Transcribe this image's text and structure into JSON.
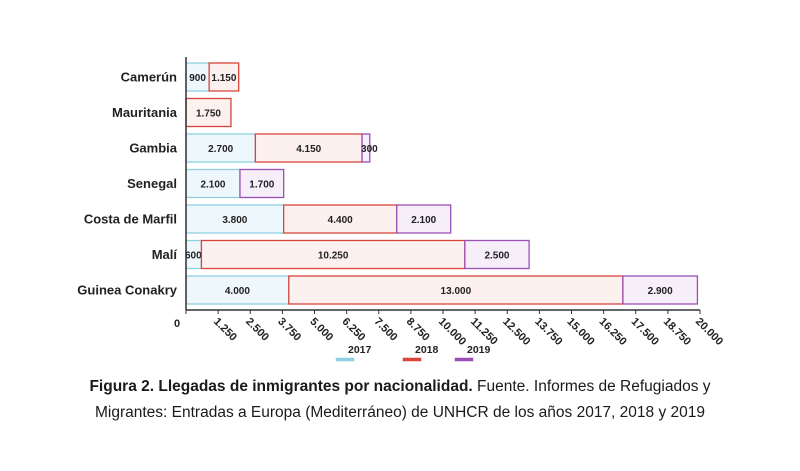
{
  "chart_data": {
    "type": "bar",
    "orientation": "horizontal",
    "stacked": true,
    "title": "",
    "xlabel": "",
    "ylabel": "",
    "categories": [
      "Camerún",
      "Mauritania",
      "Gambia",
      "Senegal",
      "Costa de Marfil",
      "Malí",
      "Guinea Conakry"
    ],
    "series": [
      {
        "name": "2017",
        "values": [
          900,
          null,
          2700,
          2100,
          3800,
          600,
          4000
        ],
        "labels": [
          "900",
          "",
          "2.700",
          "2.100",
          "3.800",
          "600",
          "4.000"
        ],
        "fill": "#eef7fb",
        "stroke": "#8ecfe4"
      },
      {
        "name": "2018",
        "values": [
          1150,
          1750,
          4150,
          null,
          4400,
          10250,
          13000
        ],
        "labels": [
          "1.150",
          "1.750",
          "4.150",
          "",
          "4.400",
          "10.250",
          "13.000"
        ],
        "fill": "#fdf1f0",
        "stroke": "#d9443a"
      },
      {
        "name": "2019",
        "values": [
          null,
          null,
          300,
          1700,
          2100,
          2500,
          2900
        ],
        "labels": [
          "",
          "",
          "300",
          "1.700",
          "2.100",
          "2.500",
          "2.900"
        ],
        "fill": "#f6effa",
        "stroke": "#9a4fb5"
      }
    ],
    "xlim": [
      0,
      20000
    ],
    "xticks": [
      0,
      1250,
      2500,
      3750,
      5000,
      6250,
      7500,
      8750,
      10000,
      11250,
      12500,
      13750,
      15000,
      16250,
      17500,
      18750,
      20000
    ],
    "xtick_labels": [
      "0",
      "1.250",
      "2.500",
      "3.750",
      "5.000",
      "6.250",
      "7.500",
      "8.750",
      "10.000",
      "11.250",
      "12.500",
      "13.750",
      "15.000",
      "16.250",
      "17.500",
      "18.750",
      "20.000"
    ],
    "grid": false,
    "legend": "bottom"
  },
  "caption": {
    "bold": "Figura 2. Llegadas de inmigrantes por nacionalidad.",
    "rest": " Fuente. Informes de Refugiados y",
    "line2": "Migrantes: Entradas a Europa (Mediterráneo) de UNHCR de los años 2017, 2018 y 2019"
  }
}
